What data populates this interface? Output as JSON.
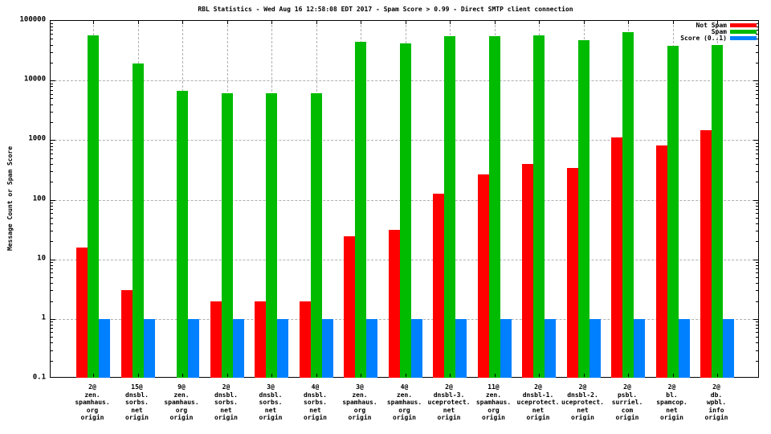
{
  "title": "RBL Statistics - Wed Aug 16 12:58:08 EDT 2017 - Spam Score > 0.99 - Direct SMTP client connection",
  "y_axis": {
    "label": "Message Count or Spam Score",
    "scale": "log",
    "ticks": [
      "100000",
      "10000",
      "1000",
      "100",
      "10",
      "1",
      "0.1"
    ]
  },
  "legend": {
    "position": "top-right",
    "entries": [
      {
        "label": "Not Spam",
        "color": "#ff0000"
      },
      {
        "label": "Spam",
        "color": "#00bb00"
      },
      {
        "label": "Score (0..1)",
        "color": "#0080ff"
      }
    ]
  },
  "colors": {
    "not_spam": "#ff0000",
    "spam": "#00bb00",
    "score": "#0080ff",
    "grid": "#b0b0b0",
    "background": "#ffffff"
  },
  "chart_data": {
    "type": "bar",
    "title": "RBL Statistics - Wed Aug 16 12:58:08 EDT 2017 - Spam Score > 0.99 - Direct SMTP client connection",
    "xlabel": "",
    "ylabel": "Message Count or Spam Score",
    "y_scale": "log",
    "ylim": [
      0.1,
      100000
    ],
    "yticks": [
      "100000",
      "10000",
      "1000",
      "100",
      "10",
      "1",
      "0.1"
    ],
    "grid": true,
    "legend_position": "top-right",
    "categories": [
      [
        "2@",
        "zen.",
        "spamhaus.",
        "org",
        "origin"
      ],
      [
        "15@",
        "dnsbl.",
        "sorbs.",
        "net",
        "origin"
      ],
      [
        "9@",
        "zen.",
        "spamhaus.",
        "org",
        "origin"
      ],
      [
        "2@",
        "dnsbl.",
        "sorbs.",
        "net",
        "origin"
      ],
      [
        "3@",
        "dnsbl.",
        "sorbs.",
        "net",
        "origin"
      ],
      [
        "4@",
        "dnsbl.",
        "sorbs.",
        "net",
        "origin"
      ],
      [
        "3@",
        "zen.",
        "spamhaus.",
        "org",
        "origin"
      ],
      [
        "4@",
        "zen.",
        "spamhaus.",
        "org",
        "origin"
      ],
      [
        "2@",
        "dnsbl-3.",
        "uceprotect.",
        "net",
        "origin"
      ],
      [
        "11@",
        "zen.",
        "spamhaus.",
        "org",
        "origin"
      ],
      [
        "2@",
        "dnsbl-1.",
        "uceprotect.",
        "net",
        "origin"
      ],
      [
        "2@",
        "dnsbl-2.",
        "uceprotect.",
        "net",
        "origin"
      ],
      [
        "2@",
        "psbl.",
        "surriel.",
        "com",
        "origin"
      ],
      [
        "2@",
        "bl.",
        "spamcop.",
        "net",
        "origin"
      ],
      [
        "2@",
        "db.",
        "wpbl.",
        "info",
        "origin"
      ]
    ],
    "series": [
      {
        "name": "Not Spam",
        "color": "#ff0000",
        "values": [
          16,
          3,
          0,
          2,
          2,
          2,
          24,
          31,
          125,
          270,
          400,
          340,
          1100,
          820,
          1450
        ]
      },
      {
        "name": "Spam",
        "color": "#00bb00",
        "values": [
          58000,
          19000,
          6800,
          6200,
          6100,
          6200,
          44000,
          42000,
          56000,
          56000,
          58000,
          47000,
          64000,
          38000,
          40000
        ]
      },
      {
        "name": "Score (0..1)",
        "color": "#0080ff",
        "values": [
          1,
          1,
          1,
          1,
          1,
          1,
          1,
          1,
          1,
          1,
          1,
          1,
          1,
          1,
          1
        ]
      }
    ]
  }
}
